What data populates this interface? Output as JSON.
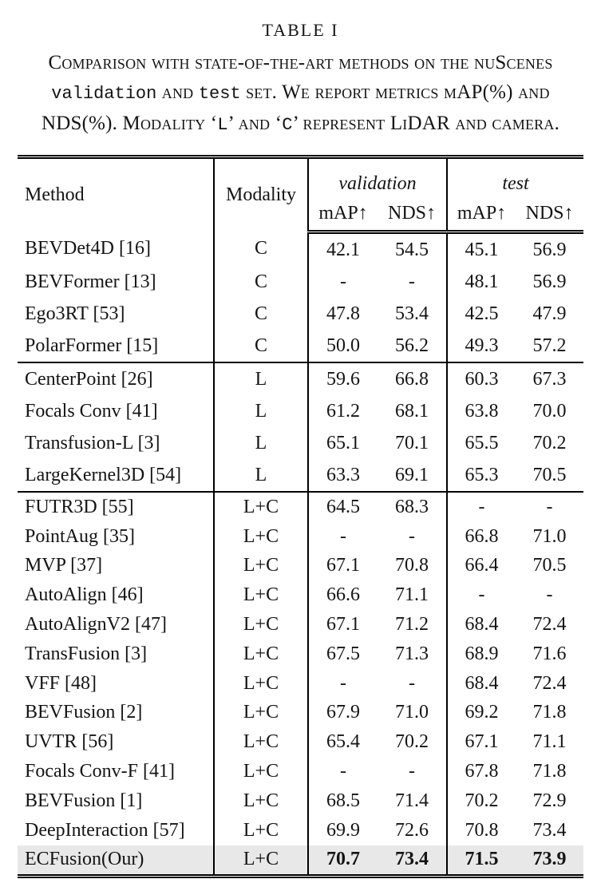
{
  "caption": {
    "title": "TABLE I",
    "lines": [
      [
        {
          "t": "Comparison with state-of-the-art methods on the nuScenes",
          "f": "sc"
        }
      ],
      [
        {
          "t": "validation",
          "f": "mono"
        },
        {
          "t": " and ",
          "f": "sc"
        },
        {
          "t": "test",
          "f": "mono"
        },
        {
          "t": " set. We report metrics mAP(%) and",
          "f": "sc"
        }
      ],
      [
        {
          "t": "NDS(%). Modality ‘",
          "f": "sc"
        },
        {
          "t": "L",
          "f": "mono"
        },
        {
          "t": "’ and ‘",
          "f": "sc"
        },
        {
          "t": "C",
          "f": "mono"
        },
        {
          "t": "’ represent LiDAR and camera.",
          "f": "sc"
        }
      ]
    ]
  },
  "header": {
    "method": "Method",
    "modality": "Modality",
    "validation": "validation",
    "test": "test",
    "map": "mAP↑",
    "nds": "NDS↑"
  },
  "rows": [
    {
      "method": "BEVDet4D [16]",
      "modality": "C",
      "vals": [
        "42.1",
        "54.5",
        "45.1",
        "56.9"
      ],
      "group": 0,
      "highlight": false,
      "bold": false
    },
    {
      "method": "BEVFormer [13]",
      "modality": "C",
      "vals": [
        "-",
        "-",
        "48.1",
        "56.9"
      ],
      "group": 0,
      "highlight": false,
      "bold": false
    },
    {
      "method": "Ego3RT [53]",
      "modality": "C",
      "vals": [
        "47.8",
        "53.4",
        "42.5",
        "47.9"
      ],
      "group": 0,
      "highlight": false,
      "bold": false
    },
    {
      "method": "PolarFormer [15]",
      "modality": "C",
      "vals": [
        "50.0",
        "56.2",
        "49.3",
        "57.2"
      ],
      "group": 0,
      "highlight": false,
      "bold": false
    },
    {
      "method": "CenterPoint [26]",
      "modality": "L",
      "vals": [
        "59.6",
        "66.8",
        "60.3",
        "67.3"
      ],
      "group": 1,
      "highlight": false,
      "bold": false
    },
    {
      "method": "Focals Conv [41]",
      "modality": "L",
      "vals": [
        "61.2",
        "68.1",
        "63.8",
        "70.0"
      ],
      "group": 1,
      "highlight": false,
      "bold": false
    },
    {
      "method": "Transfusion-L [3]",
      "modality": "L",
      "vals": [
        "65.1",
        "70.1",
        "65.5",
        "70.2"
      ],
      "group": 1,
      "highlight": false,
      "bold": false
    },
    {
      "method": "LargeKernel3D [54]",
      "modality": "L",
      "vals": [
        "63.3",
        "69.1",
        "65.3",
        "70.5"
      ],
      "group": 1,
      "highlight": false,
      "bold": false
    },
    {
      "method": "FUTR3D [55]",
      "modality": "L+C",
      "vals": [
        "64.5",
        "68.3",
        "-",
        "-"
      ],
      "group": 2,
      "highlight": false,
      "bold": false
    },
    {
      "method": "PointAug [35]",
      "modality": "L+C",
      "vals": [
        "-",
        "-",
        "66.8",
        "71.0"
      ],
      "group": 2,
      "highlight": false,
      "bold": false
    },
    {
      "method": "MVP [37]",
      "modality": "L+C",
      "vals": [
        "67.1",
        "70.8",
        "66.4",
        "70.5"
      ],
      "group": 2,
      "highlight": false,
      "bold": false
    },
    {
      "method": "AutoAlign [46]",
      "modality": "L+C",
      "vals": [
        "66.6",
        "71.1",
        "-",
        "-"
      ],
      "group": 2,
      "highlight": false,
      "bold": false
    },
    {
      "method": "AutoAlignV2 [47]",
      "modality": "L+C",
      "vals": [
        "67.1",
        "71.2",
        "68.4",
        "72.4"
      ],
      "group": 2,
      "highlight": false,
      "bold": false
    },
    {
      "method": "TransFusion [3]",
      "modality": "L+C",
      "vals": [
        "67.5",
        "71.3",
        "68.9",
        "71.6"
      ],
      "group": 2,
      "highlight": false,
      "bold": false
    },
    {
      "method": "VFF [48]",
      "modality": "L+C",
      "vals": [
        "-",
        "-",
        "68.4",
        "72.4"
      ],
      "group": 2,
      "highlight": false,
      "bold": false
    },
    {
      "method": "BEVFusion [2]",
      "modality": "L+C",
      "vals": [
        "67.9",
        "71.0",
        "69.2",
        "71.8"
      ],
      "group": 2,
      "highlight": false,
      "bold": false
    },
    {
      "method": "UVTR [56]",
      "modality": "L+C",
      "vals": [
        "65.4",
        "70.2",
        "67.1",
        "71.1"
      ],
      "group": 2,
      "highlight": false,
      "bold": false
    },
    {
      "method": "Focals Conv-F [41]",
      "modality": "L+C",
      "vals": [
        "-",
        "-",
        "67.8",
        "71.8"
      ],
      "group": 2,
      "highlight": false,
      "bold": false
    },
    {
      "method": "BEVFusion [1]",
      "modality": "L+C",
      "vals": [
        "68.5",
        "71.4",
        "70.2",
        "72.9"
      ],
      "group": 2,
      "highlight": false,
      "bold": false
    },
    {
      "method": "DeepInteraction [57]",
      "modality": "L+C",
      "vals": [
        "69.9",
        "72.6",
        "70.8",
        "73.4"
      ],
      "group": 2,
      "highlight": false,
      "bold": false
    },
    {
      "method": "ECFusion(Our)",
      "modality": "L+C",
      "vals": [
        "70.7",
        "73.4",
        "71.5",
        "73.9"
      ],
      "group": 2,
      "highlight": true,
      "bold": true
    }
  ],
  "colors": {
    "highlight_row": "#e8e8e8",
    "rule": "#000000",
    "text": "#141414",
    "background": "#ffffff"
  }
}
